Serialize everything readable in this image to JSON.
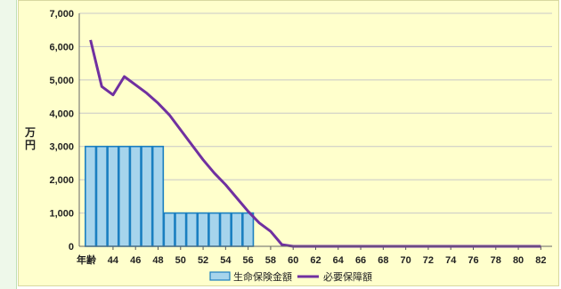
{
  "chart_data": {
    "type": "bar+line",
    "ylabel": "万円",
    "xlabel": "年齢",
    "ylim": [
      0,
      7000
    ],
    "yticks": [
      "0",
      "1,000",
      "2,000",
      "3,000",
      "4,000",
      "5,000",
      "6,000",
      "7,000"
    ],
    "ytick_values": [
      0,
      1000,
      2000,
      3000,
      4000,
      5000,
      6000,
      7000
    ],
    "xlim": [
      41,
      83
    ],
    "xticks": [
      44,
      46,
      48,
      50,
      52,
      54,
      56,
      58,
      60,
      62,
      64,
      66,
      68,
      70,
      72,
      74,
      76,
      78,
      80,
      82
    ],
    "legend_position": "bottom-center",
    "grid": true,
    "series": [
      {
        "name": "生命保険金額",
        "kind": "bar",
        "color": "#a6d4ec",
        "edge": "#1a7fc0",
        "x": [
          42,
          43,
          44,
          45,
          46,
          47,
          48,
          49,
          50,
          51,
          52,
          53,
          54,
          55,
          56
        ],
        "values": [
          3000,
          3000,
          3000,
          3000,
          3000,
          3000,
          3000,
          1000,
          1000,
          1000,
          1000,
          1000,
          1000,
          1000,
          1000
        ]
      },
      {
        "name": "必要保障額",
        "kind": "line",
        "color": "#7030a0",
        "x": [
          42,
          43,
          44,
          45,
          46,
          47,
          48,
          49,
          50,
          51,
          52,
          53,
          54,
          55,
          56,
          57,
          58,
          59,
          60,
          61,
          62,
          63,
          64,
          65,
          66,
          67,
          68,
          69,
          70,
          71,
          72,
          73,
          74,
          75,
          76,
          77,
          78,
          79,
          80,
          81,
          82
        ],
        "values": [
          6200,
          4800,
          4550,
          5100,
          4850,
          4600,
          4300,
          3950,
          3500,
          3050,
          2600,
          2200,
          1850,
          1450,
          1050,
          700,
          450,
          50,
          0,
          0,
          0,
          0,
          0,
          0,
          0,
          0,
          0,
          0,
          0,
          0,
          0,
          0,
          0,
          0,
          0,
          0,
          0,
          0,
          0,
          0,
          0
        ]
      }
    ]
  }
}
